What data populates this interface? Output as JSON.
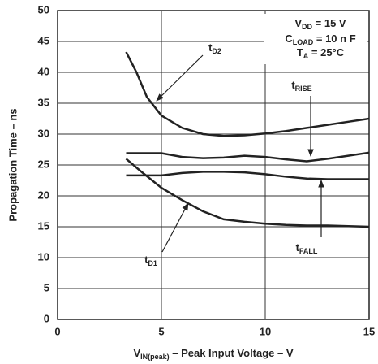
{
  "chart_data": {
    "type": "line",
    "xlabel": {
      "text": "V",
      "sub": "IN(peak)",
      "after": " –  Peak Input Voltage – V"
    },
    "ylabel": "Propagation Time – ns",
    "xlim": [
      0,
      15
    ],
    "xticks": [
      0,
      5,
      10,
      15
    ],
    "ylim": [
      0,
      50
    ],
    "yticks": [
      0,
      5,
      10,
      15,
      20,
      25,
      30,
      35,
      40,
      45,
      50
    ],
    "grid": true,
    "conditions": [
      {
        "text": "V",
        "sub": "DD",
        "after": " = 15 V"
      },
      {
        "text": "C",
        "sub": "LOAD",
        "after": " = 10 n F"
      },
      {
        "text": "T",
        "sub": "A",
        "after": " = 25°C"
      }
    ],
    "series": [
      {
        "label": {
          "text": "t",
          "sub": "D2"
        },
        "color": "#222222",
        "x": [
          3.3,
          3.8,
          4.3,
          5,
          6,
          7,
          8,
          9,
          10,
          11,
          12,
          13,
          14,
          15
        ],
        "values": [
          43.3,
          40,
          36,
          33,
          31,
          30,
          29.7,
          29.8,
          30.1,
          30.5,
          31,
          31.5,
          32,
          32.5
        ]
      },
      {
        "label": {
          "text": "t",
          "sub": "RISE"
        },
        "color": "#222222",
        "x": [
          3.3,
          5,
          6,
          7,
          8,
          9,
          10,
          11,
          12,
          13,
          14,
          15
        ],
        "values": [
          26.9,
          26.9,
          26.3,
          26.1,
          26.2,
          26.5,
          26.3,
          25.9,
          25.6,
          26,
          26.5,
          27
        ]
      },
      {
        "label": {
          "text": "t",
          "sub": "FALL"
        },
        "color": "#222222",
        "x": [
          3.3,
          5,
          6,
          7,
          8,
          9,
          10,
          11,
          12,
          13,
          15
        ],
        "values": [
          23.3,
          23.3,
          23.7,
          23.9,
          23.9,
          23.8,
          23.5,
          23.1,
          22.8,
          22.7,
          22.7
        ]
      },
      {
        "label": {
          "text": "t",
          "sub": "D1"
        },
        "color": "#222222",
        "x": [
          3.3,
          4,
          5,
          6,
          7,
          8,
          9,
          10,
          11,
          12,
          13,
          14,
          15
        ],
        "values": [
          26,
          24,
          21.3,
          19.3,
          17.5,
          16.2,
          15.8,
          15.5,
          15.3,
          15.2,
          15.2,
          15.1,
          15
        ]
      }
    ]
  }
}
